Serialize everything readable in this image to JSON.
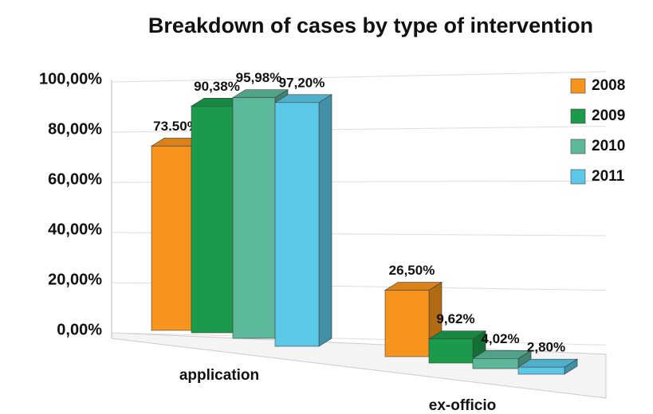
{
  "chart_data": {
    "type": "bar3d",
    "title": "Breakdown of cases by type of intervention",
    "categories": [
      "application",
      "ex-officio"
    ],
    "series": [
      {
        "name": "2008",
        "color": "#f7941d",
        "values": [
          73.5,
          26.5
        ],
        "value_labels": [
          "73.50%",
          "26,50%"
        ]
      },
      {
        "name": "2009",
        "color": "#1a9a4a",
        "values": [
          90.38,
          9.62
        ],
        "value_labels": [
          "90,38%",
          "9,62%"
        ]
      },
      {
        "name": "2010",
        "color": "#5bb89a",
        "values": [
          95.98,
          4.02
        ],
        "value_labels": [
          "95,98%",
          "4,02%"
        ]
      },
      {
        "name": "2011",
        "color": "#5bc8e8",
        "values": [
          97.2,
          2.8
        ],
        "value_labels": [
          "97,20%",
          "2,80%"
        ]
      }
    ],
    "ylim": [
      0,
      100
    ],
    "yticks": [
      {
        "value": 0,
        "label": "0,00%"
      },
      {
        "value": 20,
        "label": "20,00%"
      },
      {
        "value": 40,
        "label": "40,00%"
      },
      {
        "value": 60,
        "label": "60,00%"
      },
      {
        "value": 80,
        "label": "80,00%"
      },
      {
        "value": 100,
        "label": "100,00%"
      }
    ],
    "grid": true,
    "legend": "top-right"
  }
}
